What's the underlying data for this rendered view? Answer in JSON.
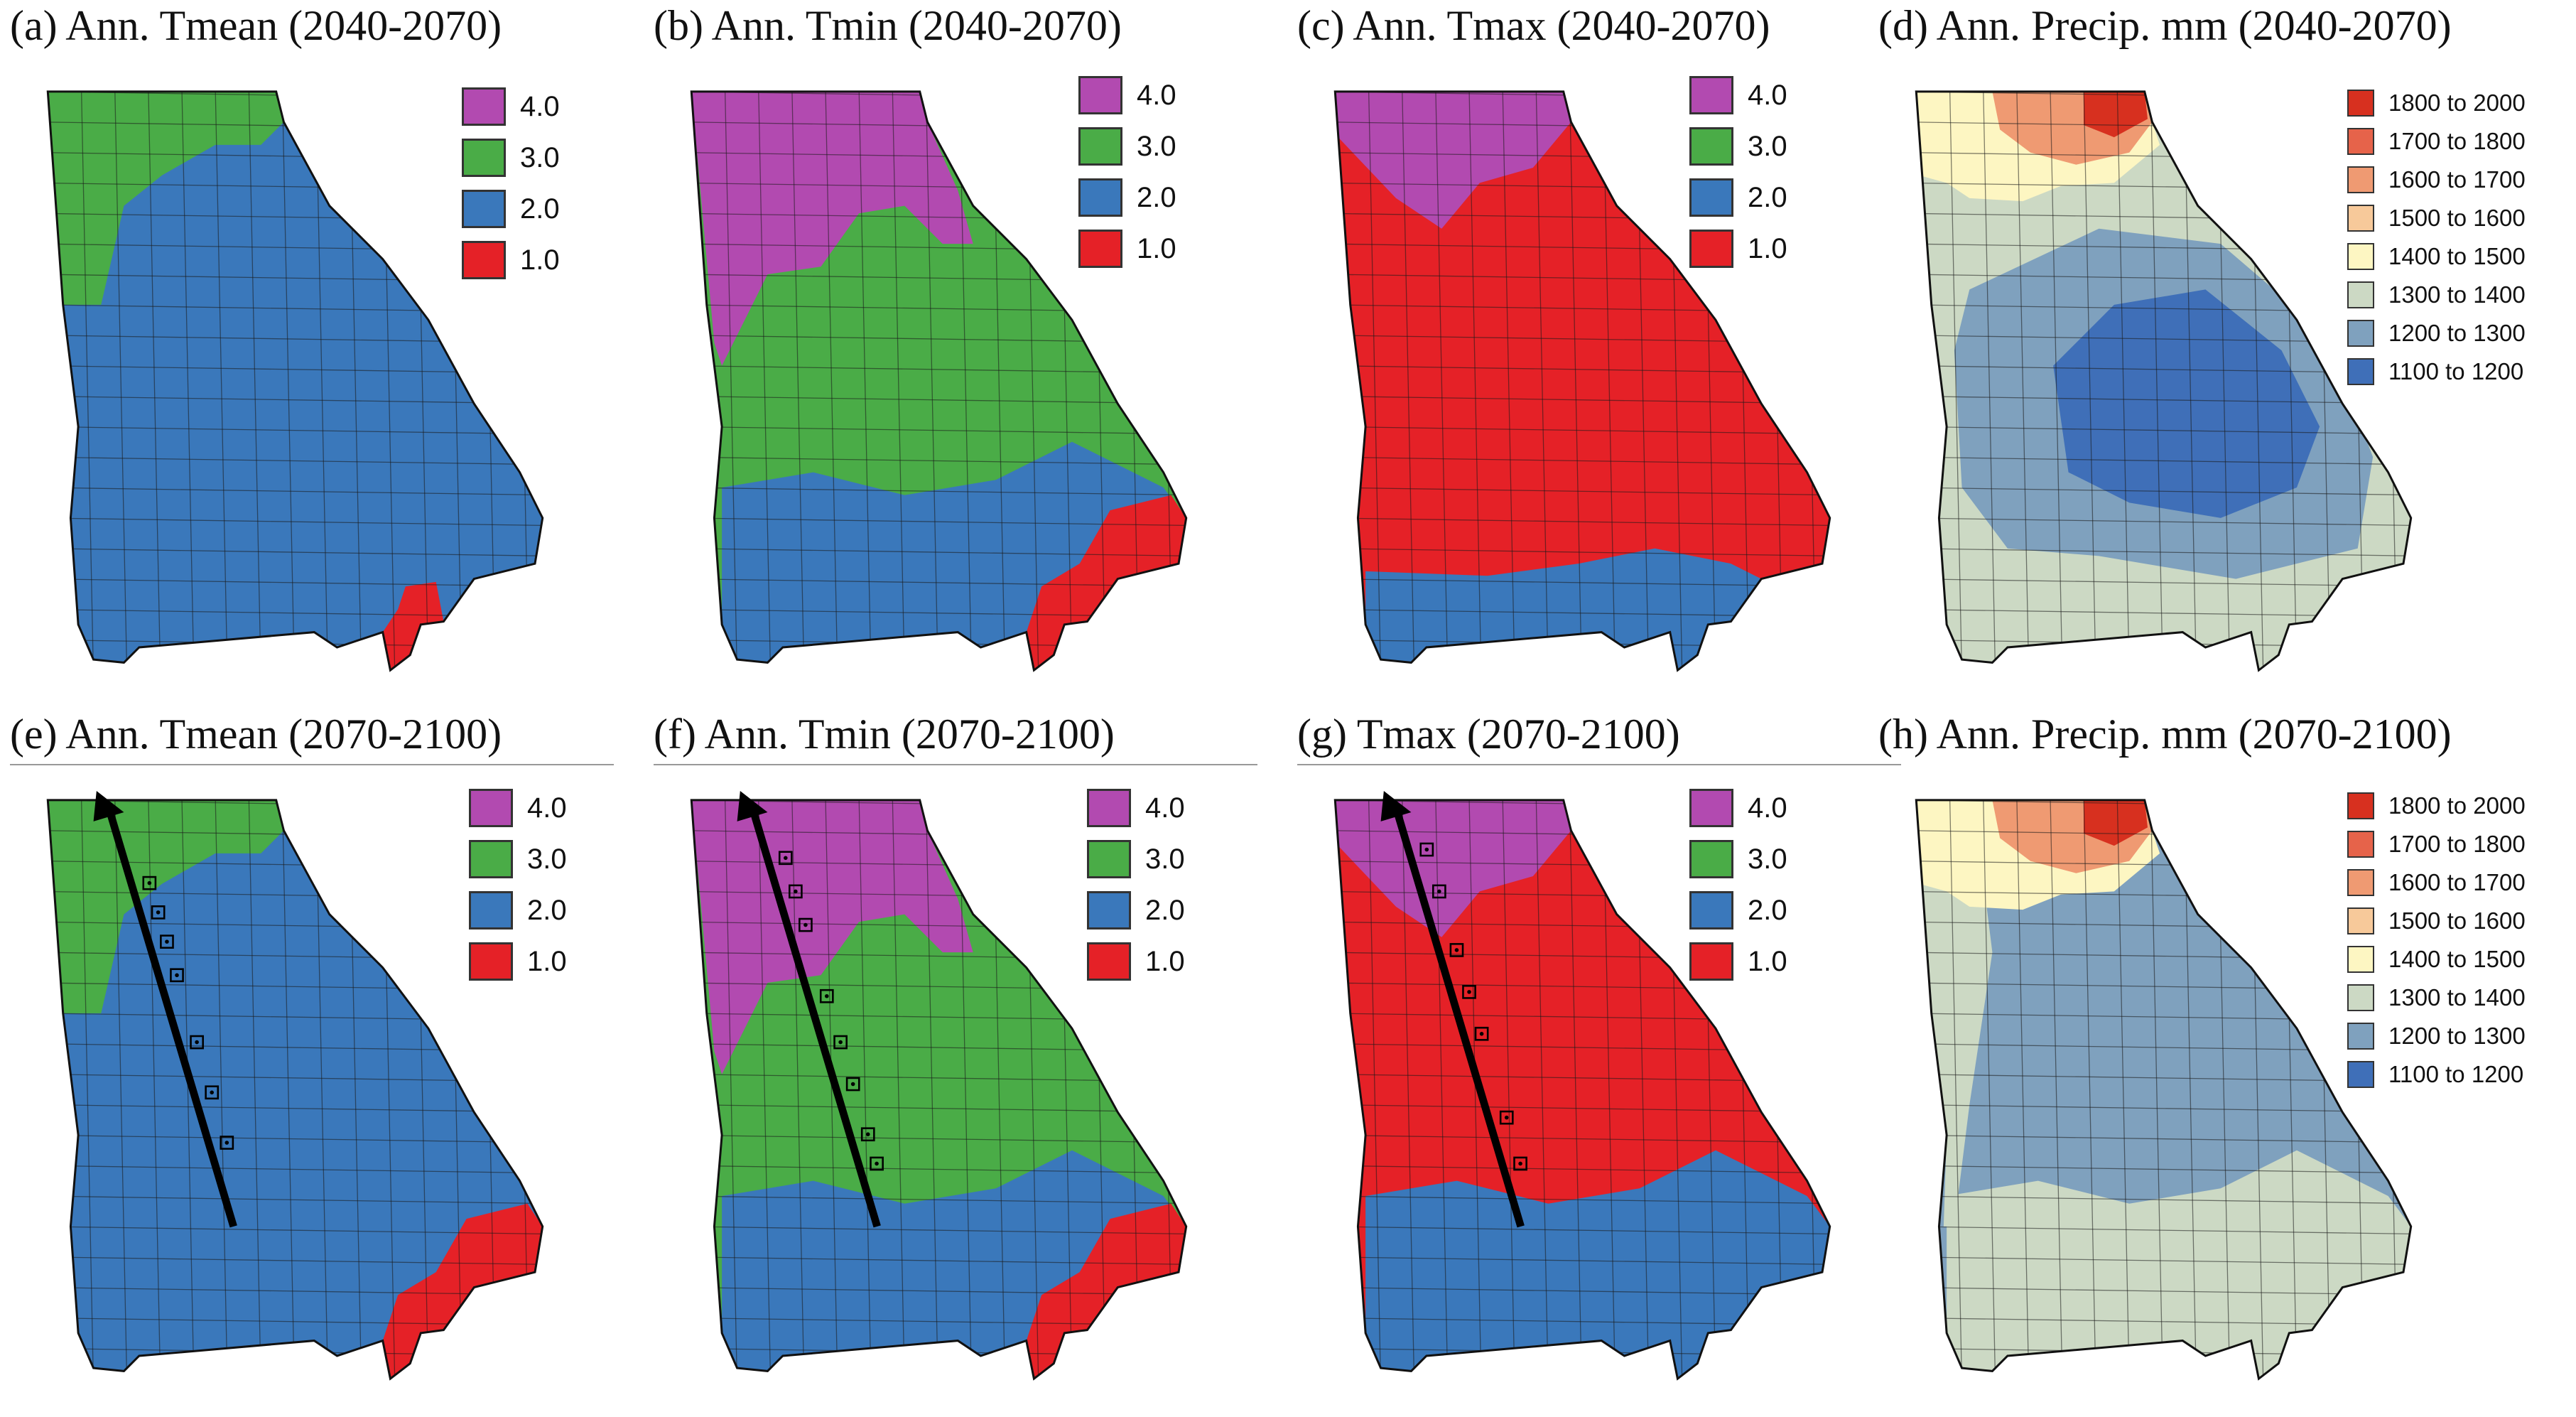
{
  "panels": [
    {
      "id": "a",
      "title": "(a) Ann. Tmean (2040-2070)",
      "kind": "temp",
      "rule": false,
      "base": "blue",
      "regions": [
        {
          "shape": "nw",
          "color": "green"
        },
        {
          "shape": "se-small",
          "color": "red"
        }
      ],
      "arrow": false,
      "markers": []
    },
    {
      "id": "b",
      "title": "(b) Ann. Tmin (2040-2070)",
      "kind": "temp",
      "rule": false,
      "base": "green",
      "regions": [
        {
          "shape": "nw-large",
          "color": "purple"
        },
        {
          "shape": "south",
          "color": "blue"
        },
        {
          "shape": "se",
          "color": "red"
        }
      ],
      "arrow": false,
      "markers": []
    },
    {
      "id": "c",
      "title": "(c) Ann. Tmax (2040-2070)",
      "kind": "temp",
      "rule": false,
      "base": "red",
      "regions": [
        {
          "shape": "north",
          "color": "purple"
        },
        {
          "shape": "south-strip",
          "color": "blue"
        }
      ],
      "arrow": false,
      "markers": []
    },
    {
      "id": "d",
      "title": "(d) Ann. Precip. mm (2040-2070)",
      "kind": "precip",
      "rule": false,
      "base": "c1300",
      "regions": [
        {
          "shape": "north-band",
          "color": "c1400"
        },
        {
          "shape": "ne-corner",
          "color": "c1600"
        },
        {
          "shape": "ne-tip",
          "color": "c1800"
        },
        {
          "shape": "center",
          "color": "c1200"
        },
        {
          "shape": "core",
          "color": "c1100"
        }
      ],
      "arrow": false,
      "markers": []
    },
    {
      "id": "e",
      "title": "(e) Ann. Tmean (2070-2100)",
      "kind": "temp",
      "rule": true,
      "base": "blue",
      "regions": [
        {
          "shape": "nw",
          "color": "green"
        },
        {
          "shape": "se",
          "color": "red"
        }
      ],
      "arrow": true,
      "markers": [
        0.2,
        0.32,
        0.44,
        0.6,
        0.68,
        0.75,
        0.82
      ]
    },
    {
      "id": "f",
      "title": "(f) Ann. Tmin (2070-2100)",
      "kind": "temp",
      "rule": true,
      "base": "green",
      "regions": [
        {
          "shape": "nw-large",
          "color": "purple"
        },
        {
          "shape": "south",
          "color": "blue"
        },
        {
          "shape": "se",
          "color": "red"
        }
      ],
      "arrow": true,
      "markers": [
        0.15,
        0.22,
        0.34,
        0.44,
        0.55,
        0.72,
        0.8,
        0.88
      ]
    },
    {
      "id": "g",
      "title": "(g) Tmax (2070-2100)",
      "kind": "temp",
      "rule": true,
      "base": "red",
      "regions": [
        {
          "shape": "north",
          "color": "purple"
        },
        {
          "shape": "south",
          "color": "blue"
        }
      ],
      "arrow": true,
      "markers": [
        0.15,
        0.26,
        0.46,
        0.56,
        0.66,
        0.8,
        0.9
      ]
    },
    {
      "id": "h",
      "title": "(h) Ann. Precip. mm (2070-2100)",
      "kind": "precip",
      "rule": false,
      "base": "c1200",
      "regions": [
        {
          "shape": "west-edge",
          "color": "c1300"
        },
        {
          "shape": "north-band",
          "color": "c1400"
        },
        {
          "shape": "ne-corner",
          "color": "c1600"
        },
        {
          "shape": "ne-tip",
          "color": "c1800"
        },
        {
          "shape": "south",
          "color": "c1300"
        }
      ],
      "arrow": false,
      "markers": []
    }
  ],
  "temp_legend": [
    {
      "label": "4.0",
      "color": "#b24ab0"
    },
    {
      "label": "3.0",
      "color": "#4aac47"
    },
    {
      "label": "2.0",
      "color": "#3a78bb"
    },
    {
      "label": "1.0",
      "color": "#e52127"
    }
  ],
  "precip_legend": [
    {
      "label": "1800 to 2000",
      "color": "#d7301f"
    },
    {
      "label": "1700 to 1800",
      "color": "#e6634a"
    },
    {
      "label": "1600 to 1700",
      "color": "#ef9a72"
    },
    {
      "label": "1500 to 1600",
      "color": "#f7c99a"
    },
    {
      "label": "1400 to 1500",
      "color": "#fdf6c2"
    },
    {
      "label": "1300 to 1400",
      "color": "#ccd9c4"
    },
    {
      "label": "1200 to 1300",
      "color": "#7fa1be"
    },
    {
      "label": "1100 to 1200",
      "color": "#3f6fb8"
    }
  ],
  "colors": {
    "purple": "#b24ab0",
    "green": "#4aac47",
    "blue": "#3a78bb",
    "red": "#e52127",
    "c1800": "#d7301f",
    "c1600": "#ef9a72",
    "c1400": "#fdf6c2",
    "c1300": "#ccd9c4",
    "c1200": "#7fa1be",
    "c1100": "#3f6fb8"
  }
}
